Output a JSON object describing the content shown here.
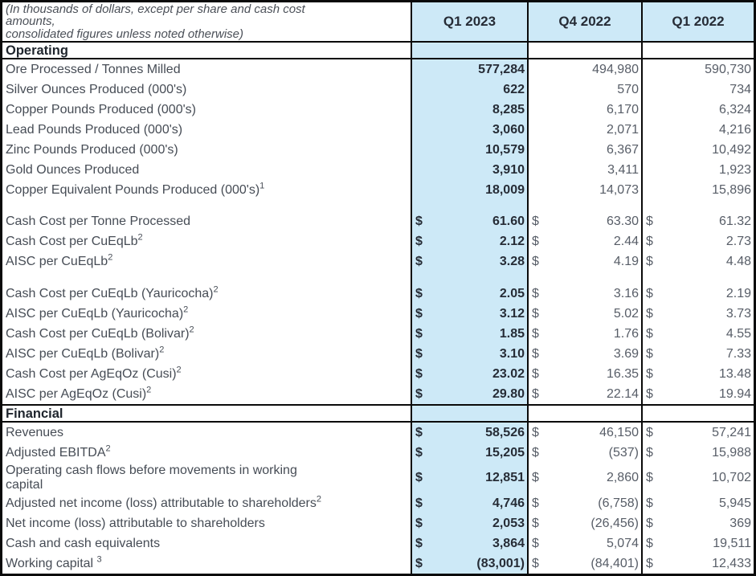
{
  "table": {
    "note": "(In thousands of dollars, except per share and cash cost amounts,\nconsolidated figures unless noted otherwise)",
    "columns": [
      "Q1 2023",
      "Q4 2022",
      "Q1 2022"
    ],
    "colors": {
      "highlight_column": "#cde9f7",
      "border": "#0a0a0a",
      "bold_value_text": "#262c36",
      "regular_value_text": "#575d67",
      "label_text": "#464c55"
    },
    "sections": [
      {
        "title": "Operating",
        "groups": [
          {
            "dollar": false,
            "rows": [
              {
                "label": "Ore Processed / Tonnes Milled",
                "sup": "",
                "values": [
                  "577,284",
                  "494,980",
                  "590,730"
                ]
              },
              {
                "label": "Silver Ounces Produced (000's)",
                "sup": "",
                "values": [
                  "622",
                  "570",
                  "734"
                ]
              },
              {
                "label": "Copper Pounds Produced (000's)",
                "sup": "",
                "values": [
                  "8,285",
                  "6,170",
                  "6,324"
                ]
              },
              {
                "label": "Lead Pounds Produced (000's)",
                "sup": "",
                "values": [
                  "3,060",
                  "2,071",
                  "4,216"
                ]
              },
              {
                "label": "Zinc Pounds Produced (000's)",
                "sup": "",
                "values": [
                  "10,579",
                  "6,367",
                  "10,492"
                ]
              },
              {
                "label": "Gold Ounces Produced",
                "sup": "",
                "values": [
                  "3,910",
                  "3,411",
                  "1,923"
                ]
              },
              {
                "label": "Copper Equivalent Pounds Produced (000's)",
                "sup": "1",
                "values": [
                  "18,009",
                  "14,073",
                  "15,896"
                ]
              }
            ]
          },
          {
            "dollar": true,
            "rows": [
              {
                "label": "Cash Cost per Tonne Processed",
                "sup": "",
                "values": [
                  "61.60",
                  "63.30",
                  "61.32"
                ]
              },
              {
                "label": "Cash Cost per CuEqLb",
                "sup": "2",
                "values": [
                  "2.12",
                  "2.44",
                  "2.73"
                ]
              },
              {
                "label": "AISC per CuEqLb",
                "sup": "2",
                "values": [
                  "3.28",
                  "4.19",
                  "4.48"
                ]
              }
            ]
          },
          {
            "dollar": true,
            "rows": [
              {
                "label": "Cash Cost per CuEqLb (Yauricocha)",
                "sup": "2",
                "values": [
                  "2.05",
                  "3.16",
                  "2.19"
                ]
              },
              {
                "label": "AISC per CuEqLb (Yauricocha)",
                "sup": "2",
                "values": [
                  "3.12",
                  "5.02",
                  "3.73"
                ]
              },
              {
                "label": "Cash Cost per CuEqLb (Bolivar)",
                "sup": "2",
                "values": [
                  "1.85",
                  "1.76",
                  "4.55"
                ]
              },
              {
                "label": "AISC per CuEqLb (Bolivar)",
                "sup": "2",
                "values": [
                  "3.10",
                  "3.69",
                  "7.33"
                ]
              },
              {
                "label": "Cash Cost per AgEqOz (Cusi)",
                "sup": "2",
                "values": [
                  "23.02",
                  "16.35",
                  "13.48"
                ]
              },
              {
                "label": "AISC per AgEqOz (Cusi)",
                "sup": "2",
                "values": [
                  "29.80",
                  "22.14",
                  "19.94"
                ]
              }
            ]
          }
        ]
      },
      {
        "title": "Financial",
        "groups": [
          {
            "dollar": true,
            "rows": [
              {
                "label": "Revenues",
                "sup": "",
                "values": [
                  "58,526",
                  "46,150",
                  "57,241"
                ]
              },
              {
                "label": "Adjusted EBITDA",
                "sup": "2",
                "values": [
                  "15,205",
                  "(537)",
                  "15,988"
                ]
              },
              {
                "label": "Operating cash flows before movements in working\ncapital",
                "sup": "",
                "values": [
                  "12,851",
                  "2,860",
                  "10,702"
                ]
              },
              {
                "label": "Adjusted net income (loss) attributable to shareholders",
                "sup": "2",
                "values": [
                  "4,746",
                  "(6,758)",
                  "5,945"
                ]
              },
              {
                "label": "Net income (loss) attributable to shareholders",
                "sup": "",
                "values": [
                  "2,053",
                  "(26,456)",
                  "369"
                ]
              },
              {
                "label": "Cash and cash equivalents",
                "sup": "",
                "values": [
                  "3,864",
                  "5,074",
                  "19,511"
                ]
              },
              {
                "label": "Working capital ",
                "sup": "3",
                "values": [
                  "(83,001)",
                  "(84,401)",
                  "12,433"
                ]
              }
            ]
          }
        ]
      }
    ]
  }
}
